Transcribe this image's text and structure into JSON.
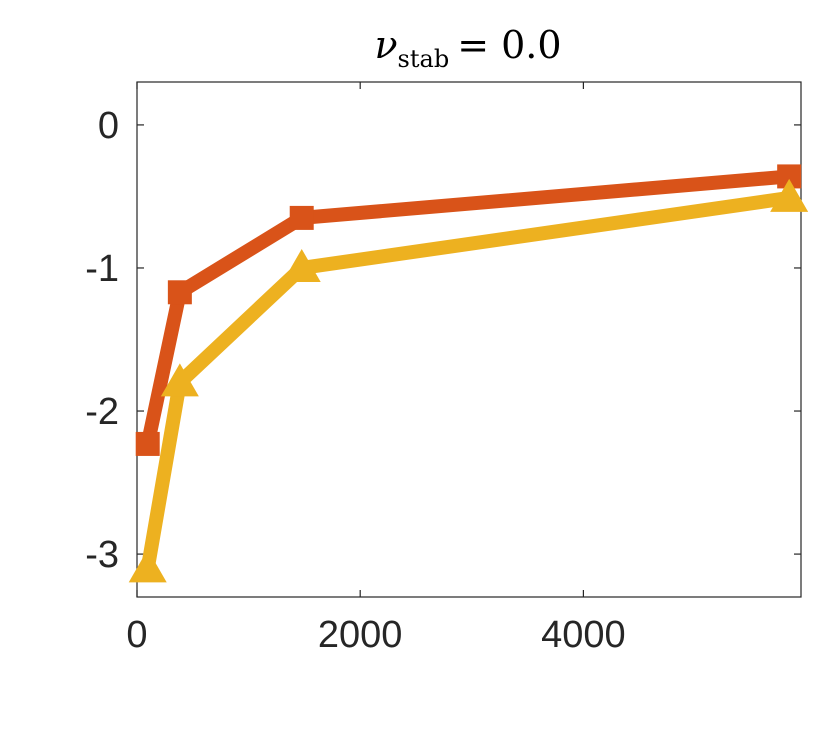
{
  "chart_data": {
    "type": "line",
    "title": {
      "symbol": "ν",
      "subscript": "stab",
      "rest": "= 0.0"
    },
    "xlabel": "",
    "ylabel": "",
    "xlim": [
      0,
      5950
    ],
    "ylim": [
      -3.3,
      0.3
    ],
    "xticks": [
      0,
      2000,
      4000
    ],
    "xtick_labels": [
      "0",
      "2000",
      "4000"
    ],
    "yticks": [
      0,
      -1,
      -2,
      -3
    ],
    "ytick_labels": [
      "0",
      "-1",
      "-2",
      "-3"
    ],
    "grid": false,
    "series": [
      {
        "color": "#D95319",
        "marker": "square",
        "x": [
          96,
          384,
          1476,
          5844
        ],
        "y": [
          -2.23,
          -1.17,
          -0.65,
          -0.36
        ]
      },
      {
        "color": "#EDB120",
        "marker": "triangle",
        "x": [
          96,
          384,
          1476,
          5844
        ],
        "y": [
          -3.1,
          -1.8,
          -1.0,
          -0.51
        ]
      }
    ]
  }
}
